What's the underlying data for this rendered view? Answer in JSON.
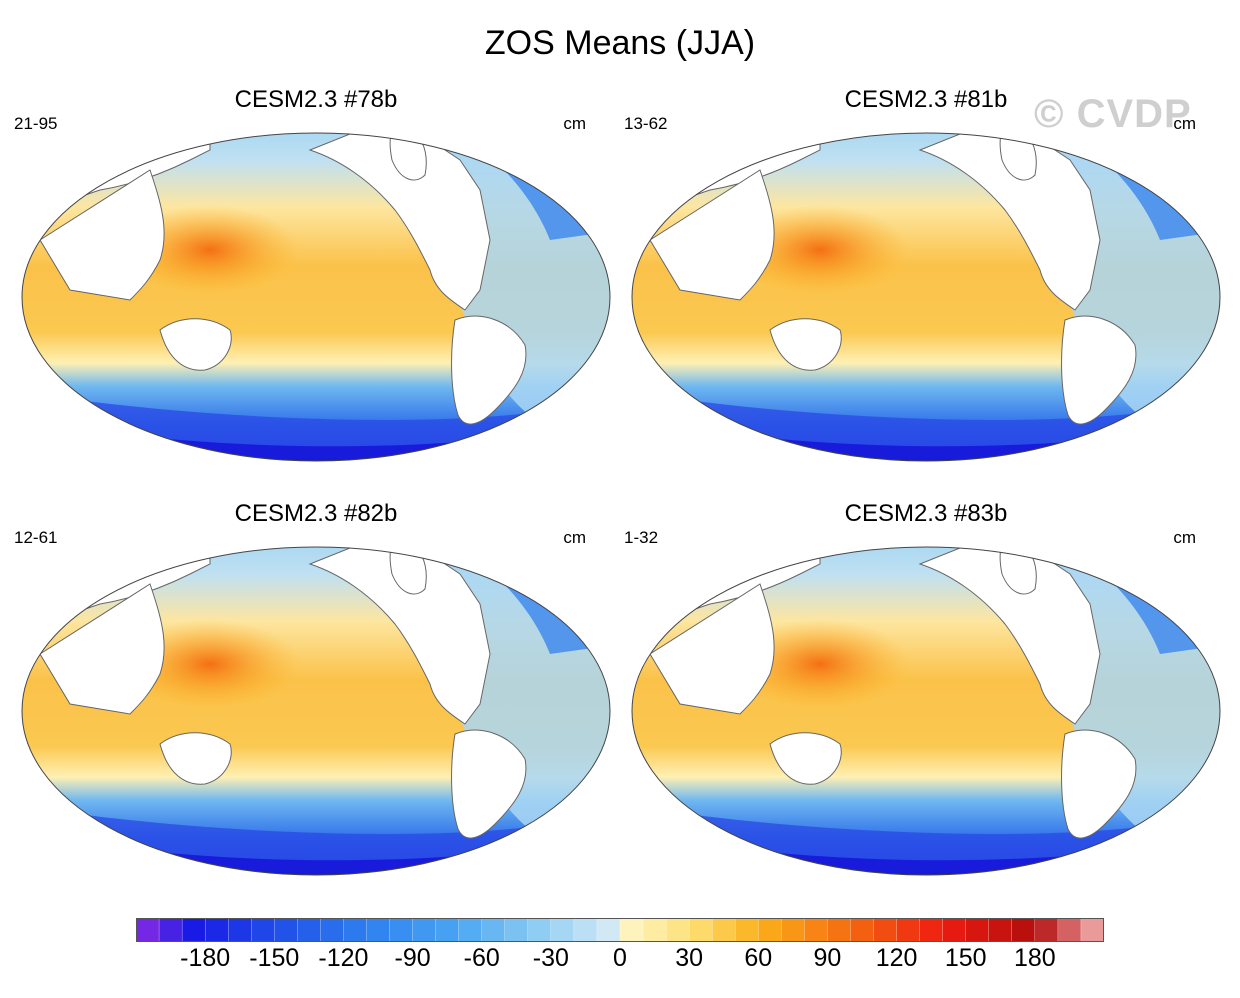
{
  "title": "ZOS Means (JJA)",
  "watermark": "© CVDP",
  "panels": [
    {
      "title": "CESM2.3 #78b",
      "years": "21-95",
      "units": "cm"
    },
    {
      "title": "CESM2.3 #81b",
      "years": "13-62",
      "units": "cm"
    },
    {
      "title": "CESM2.3 #82b",
      "years": "12-61",
      "units": "cm"
    },
    {
      "title": "CESM2.3 #83b",
      "years": "1-32",
      "units": "cm"
    }
  ],
  "colorbar": {
    "labels": [
      "-180",
      "-150",
      "-120",
      "-90",
      "-60",
      "-30",
      "0",
      "30",
      "60",
      "90",
      "120",
      "150",
      "180"
    ],
    "min": -210,
    "max": 210,
    "step": 10,
    "anchors": [
      {
        "v": -210,
        "c": "#8a2be2"
      },
      {
        "v": -185,
        "c": "#1a1ae6"
      },
      {
        "v": -150,
        "c": "#1f4de8"
      },
      {
        "v": -110,
        "c": "#2f80f0"
      },
      {
        "v": -70,
        "c": "#4aa6f2"
      },
      {
        "v": -35,
        "c": "#8fcdf2"
      },
      {
        "v": 0,
        "c": "#dcecf5"
      },
      {
        "v": 1,
        "c": "#fff6c8"
      },
      {
        "v": 30,
        "c": "#fde27a"
      },
      {
        "v": 60,
        "c": "#fbb01a"
      },
      {
        "v": 100,
        "c": "#f46a10"
      },
      {
        "v": 140,
        "c": "#ee1c10"
      },
      {
        "v": 180,
        "c": "#b10d0d"
      },
      {
        "v": 210,
        "c": "#f6b6b6"
      }
    ]
  }
}
